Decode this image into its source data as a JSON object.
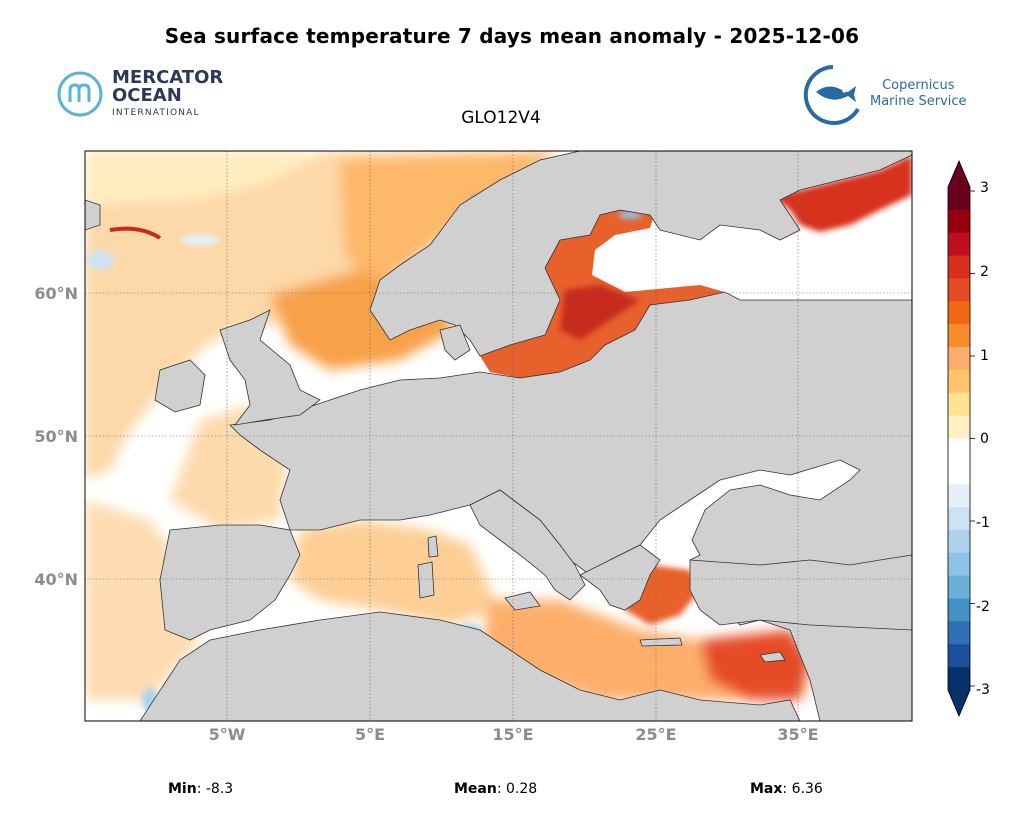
{
  "header": {
    "title": "Sea surface temperature 7 days mean anomaly - 2025-12-06",
    "model": "GLO12V4"
  },
  "logos": {
    "mercator": {
      "line1": "MERCATOR",
      "line2": "OCEAN",
      "line3": "INTERNATIONAL"
    },
    "copernicus": {
      "line1": "Copernicus",
      "line2": "Marine Service"
    }
  },
  "map": {
    "lon_range": [
      -15,
      43
    ],
    "lat_range": [
      30,
      70
    ],
    "lat_ticks": [
      "60°N",
      "50°N",
      "40°N"
    ],
    "lon_ticks": [
      "5°W",
      "5°E",
      "15°E",
      "25°E",
      "35°E"
    ],
    "land_color": "#d0d0d0",
    "gridlines": true
  },
  "colorbar": {
    "min": -3,
    "max": 3,
    "ticks": [
      "3",
      "2",
      "1",
      "0",
      "-1",
      "-2",
      "-3"
    ],
    "colors": [
      "#67001f",
      "#99000d",
      "#bd0f1f",
      "#d7301f",
      "#e54b26",
      "#f16913",
      "#f78d2d",
      "#fdae6b",
      "#fdc46b",
      "#fee391",
      "#fff0c4",
      "#ffffff",
      "#ffffff",
      "#e6f0f8",
      "#cde2f3",
      "#aed1ec",
      "#8ec3e8",
      "#6baed6",
      "#4292c6",
      "#2f6fb5",
      "#1f4e9c",
      "#08306b"
    ],
    "extend": "both"
  },
  "stats": {
    "min_label": "Min",
    "min_value": ": -8.3",
    "mean_label": "Mean",
    "mean_value": ": 0.28",
    "max_label": "Max",
    "max_value": ": 6.36"
  }
}
